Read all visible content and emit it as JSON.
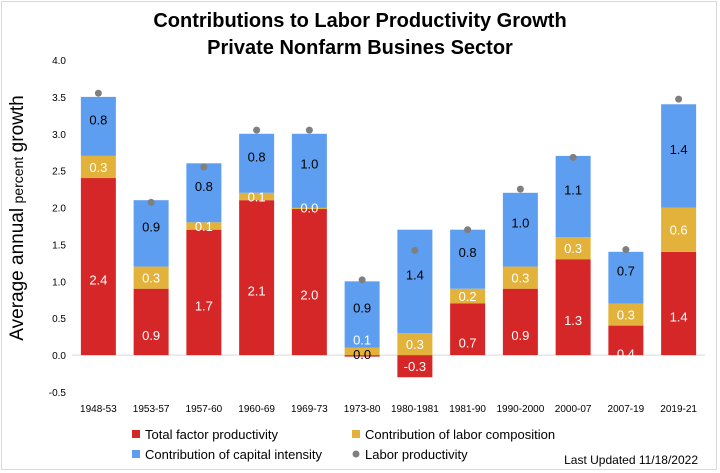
{
  "header": {
    "title_line1": "Contributions to Labor Productivity Growth",
    "title_line2": "Private Nonfarm Busines Sector"
  },
  "y_axis": {
    "label_main": "Average annual",
    "label_unit": "percent",
    "label_tail": "growth"
  },
  "footer": {
    "updated": "Last Updated 11/18/2022"
  },
  "chart_data": {
    "type": "bar",
    "stacked": true,
    "categories": [
      "1948-53",
      "1953-57",
      "1957-60",
      "1960-69",
      "1969-73",
      "1973-80",
      "1980-1981",
      "1981-90",
      "1990-2000",
      "2000-07",
      "2007-19",
      "2019-21"
    ],
    "series": [
      {
        "name": "Total factor productivity",
        "color": "#d62728",
        "values": [
          2.4,
          0.9,
          1.7,
          2.1,
          2.0,
          0.0,
          -0.3,
          0.7,
          0.9,
          1.3,
          0.4,
          1.4
        ],
        "labels": [
          "2.4",
          "0.9",
          "1.7",
          "2.1",
          "2.0",
          "0.0",
          "-0.3",
          "0.7",
          "0.9",
          "1.3",
          "0.4",
          "1.4"
        ]
      },
      {
        "name": "Contribution of labor composition",
        "color": "#e2b23a",
        "values": [
          0.3,
          0.3,
          0.1,
          0.1,
          0.0,
          0.1,
          0.3,
          0.2,
          0.3,
          0.3,
          0.3,
          0.6
        ],
        "labels": [
          "0.3",
          "0.3",
          "0.1",
          "0.1",
          "0.0",
          "",
          "0.3",
          "0.2",
          "0.3",
          "0.3",
          "0.3",
          "0.6"
        ]
      },
      {
        "name": "Contribution of capital intensity",
        "color": "#5e9ef0",
        "values": [
          0.8,
          0.9,
          0.8,
          0.8,
          1.0,
          0.9,
          1.4,
          0.8,
          1.0,
          1.1,
          0.7,
          1.4
        ],
        "labels": [
          "0.8",
          "0.9",
          "0.8",
          "0.8",
          "1.0",
          "0.9",
          "1.4",
          "0.8",
          "1.0",
          "1.1",
          "0.7",
          "1.4"
        ]
      }
    ],
    "labor_productivity": {
      "name": "Labor productivity",
      "color": "#7f7f7f",
      "values": [
        3.55,
        2.07,
        2.55,
        3.05,
        3.05,
        1.02,
        1.42,
        1.7,
        2.25,
        2.68,
        1.43,
        3.47
      ]
    },
    "extra_labels": [
      {
        "category_index": 5,
        "text": "0.1"
      }
    ],
    "ylim": [
      -0.5,
      4.0
    ],
    "yticks": [
      "-0.5",
      "0.0",
      "0.5",
      "1.0",
      "1.5",
      "2.0",
      "2.5",
      "3.0",
      "3.5",
      "4.0"
    ],
    "grid": false,
    "legend_position": "bottom"
  }
}
